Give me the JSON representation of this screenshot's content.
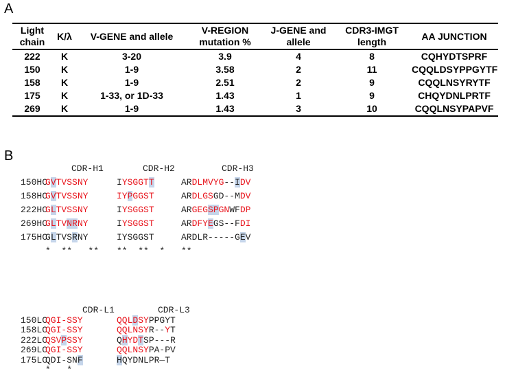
{
  "panel_a": {
    "label": "A",
    "table": {
      "headers": [
        "Light chain",
        "K/λ",
        "V-GENE and allele",
        "V-REGION mutation %",
        "J-GENE and allele",
        "CDR3-IMGT length",
        "AA JUNCTION"
      ],
      "rows": [
        [
          "222",
          "K",
          "3-20",
          "3.9",
          "4",
          "8",
          "CQHYDTSPRF"
        ],
        [
          "150",
          "K",
          "1-9",
          "3.58",
          "2",
          "11",
          "CQQLDSYPPGYTF"
        ],
        [
          "158",
          "K",
          "1-9",
          "2.51",
          "2",
          "9",
          "CQQLNSYRYTF"
        ],
        [
          "175",
          "K",
          "1-33, or 1D-33",
          "1.43",
          "1",
          "9",
          "CHQYDNLPRTF"
        ],
        [
          "269",
          "K",
          "1-9",
          "1.43",
          "3",
          "10",
          "CQQLNSYPAPVF"
        ]
      ]
    }
  },
  "panel_b": {
    "label": "B",
    "heavy": {
      "cdr_labels": [
        "CDR-H1",
        "CDR-H2",
        "CDR-H3"
      ],
      "rows": [
        {
          "name": "150HC",
          "cells": [
            [
              {
                "t": "G",
                "c": "#e8141c"
              },
              {
                "t": "V",
                "c": "#e8141c",
                "h": true
              },
              {
                "t": "TVSSNY",
                "c": "#e8141c"
              }
            ],
            [
              {
                "t": "I",
                "c": "#222"
              },
              {
                "t": "YSGGT",
                "c": "#e8141c"
              },
              {
                "t": "T",
                "c": "#e8141c",
                "h": true
              }
            ],
            [
              {
                "t": "AR",
                "c": "#222"
              },
              {
                "t": "DLMVYG",
                "c": "#e8141c"
              },
              {
                "t": "--",
                "c": "#222"
              },
              {
                "t": "I",
                "c": "#222",
                "h": true
              },
              {
                "t": "DV",
                "c": "#e8141c"
              }
            ]
          ]
        },
        {
          "name": "158HC",
          "cells": [
            [
              {
                "t": "G",
                "c": "#e8141c"
              },
              {
                "t": "V",
                "c": "#e8141c",
                "h": true
              },
              {
                "t": "TVSSNY",
                "c": "#e8141c"
              }
            ],
            [
              {
                "t": "IY",
                "c": "#e8141c"
              },
              {
                "t": "P",
                "c": "#e8141c",
                "h": true
              },
              {
                "t": "GGST",
                "c": "#e8141c"
              }
            ],
            [
              {
                "t": "AR",
                "c": "#222"
              },
              {
                "t": "DLGS",
                "c": "#e8141c"
              },
              {
                "t": "GD--M",
                "c": "#222"
              },
              {
                "t": "DV",
                "c": "#e8141c"
              }
            ]
          ]
        },
        {
          "name": "222HC",
          "cells": [
            [
              {
                "t": "G",
                "c": "#e8141c"
              },
              {
                "t": "L",
                "c": "#e8141c",
                "h": true
              },
              {
                "t": "TVSSNY",
                "c": "#e8141c"
              }
            ],
            [
              {
                "t": "I",
                "c": "#222"
              },
              {
                "t": "YSGGST",
                "c": "#e8141c"
              }
            ],
            [
              {
                "t": "AR",
                "c": "#222"
              },
              {
                "t": "GEG",
                "c": "#e8141c"
              },
              {
                "t": "SP",
                "c": "#e8141c",
                "h": true
              },
              {
                "t": "GN",
                "c": "#e8141c"
              },
              {
                "t": "WF",
                "c": "#222"
              },
              {
                "t": "DP",
                "c": "#e8141c"
              }
            ]
          ]
        },
        {
          "name": "269HC",
          "cells": [
            [
              {
                "t": "G",
                "c": "#e8141c"
              },
              {
                "t": "L",
                "c": "#e8141c",
                "h": true
              },
              {
                "t": "TV",
                "c": "#e8141c"
              },
              {
                "t": "NR",
                "c": "#e8141c",
                "h": true
              },
              {
                "t": "NY",
                "c": "#e8141c"
              }
            ],
            [
              {
                "t": "I",
                "c": "#222"
              },
              {
                "t": "YSGGST",
                "c": "#e8141c"
              }
            ],
            [
              {
                "t": "AR",
                "c": "#222"
              },
              {
                "t": "DFY",
                "c": "#e8141c"
              },
              {
                "t": "E",
                "c": "#e8141c",
                "h": true
              },
              {
                "t": "GS--F",
                "c": "#222"
              },
              {
                "t": "DI",
                "c": "#e8141c"
              }
            ]
          ]
        },
        {
          "name": "175HC",
          "cells": [
            [
              {
                "t": "G",
                "c": "#222"
              },
              {
                "t": "L",
                "c": "#222",
                "h": true
              },
              {
                "t": "TVS",
                "c": "#222"
              },
              {
                "t": "R",
                "c": "#222",
                "h": true
              },
              {
                "t": "NY",
                "c": "#222"
              }
            ],
            [
              {
                "t": "IYSGGST",
                "c": "#222"
              }
            ],
            [
              {
                "t": "ARDLR-----G",
                "c": "#222"
              },
              {
                "t": "E",
                "c": "#222",
                "h": true
              },
              {
                "t": "V",
                "c": "#222"
              }
            ]
          ]
        }
      ],
      "conservation": [
        "*  **   **",
        "**  **  *",
        "**"
      ]
    },
    "light": {
      "cdr_labels": [
        "CDR-L1",
        "CDR-L3"
      ],
      "rows": [
        {
          "name": "150LC",
          "cells": [
            [
              {
                "t": "QGI-SSY",
                "c": "#e8141c"
              }
            ],
            [
              {
                "t": "QQL",
                "c": "#e8141c"
              },
              {
                "t": "D",
                "c": "#e8141c",
                "h": true
              },
              {
                "t": "SY",
                "c": "#e8141c"
              },
              {
                "t": "PPGYT",
                "c": "#222"
              }
            ]
          ]
        },
        {
          "name": "158LC",
          "cells": [
            [
              {
                "t": "QGI-SSY",
                "c": "#e8141c"
              }
            ],
            [
              {
                "t": "QQLNSY",
                "c": "#e8141c"
              },
              {
                "t": "R--",
                "c": "#222"
              },
              {
                "t": "Y",
                "c": "#e8141c"
              },
              {
                "t": "T",
                "c": "#222"
              }
            ]
          ]
        },
        {
          "name": "222LC",
          "cells": [
            [
              {
                "t": "QSV",
                "c": "#e8141c"
              },
              {
                "t": "P",
                "c": "#e8141c",
                "h": true
              },
              {
                "t": "SSY",
                "c": "#e8141c"
              }
            ],
            [
              {
                "t": "Q",
                "c": "#222"
              },
              {
                "t": "H",
                "c": "#e8141c",
                "h": true
              },
              {
                "t": "YD",
                "c": "#e8141c"
              },
              {
                "t": "T",
                "c": "#e8141c",
                "h": true
              },
              {
                "t": "SP---R",
                "c": "#222"
              }
            ]
          ]
        },
        {
          "name": "269LC",
          "cells": [
            [
              {
                "t": "QGI-SSY",
                "c": "#e8141c"
              }
            ],
            [
              {
                "t": "QQLNSY",
                "c": "#e8141c"
              },
              {
                "t": "PA-PV",
                "c": "#222"
              }
            ]
          ]
        },
        {
          "name": "175LC",
          "cells": [
            [
              {
                "t": "QDI-SN",
                "c": "#222"
              },
              {
                "t": "F",
                "c": "#222",
                "h": true
              }
            ],
            [
              {
                "t": "H",
                "c": "#222",
                "h": true
              },
              {
                "t": "QYDNLPR—T",
                "c": "#222"
              }
            ]
          ]
        }
      ],
      "conservation": [
        "*   *",
        ""
      ]
    }
  }
}
